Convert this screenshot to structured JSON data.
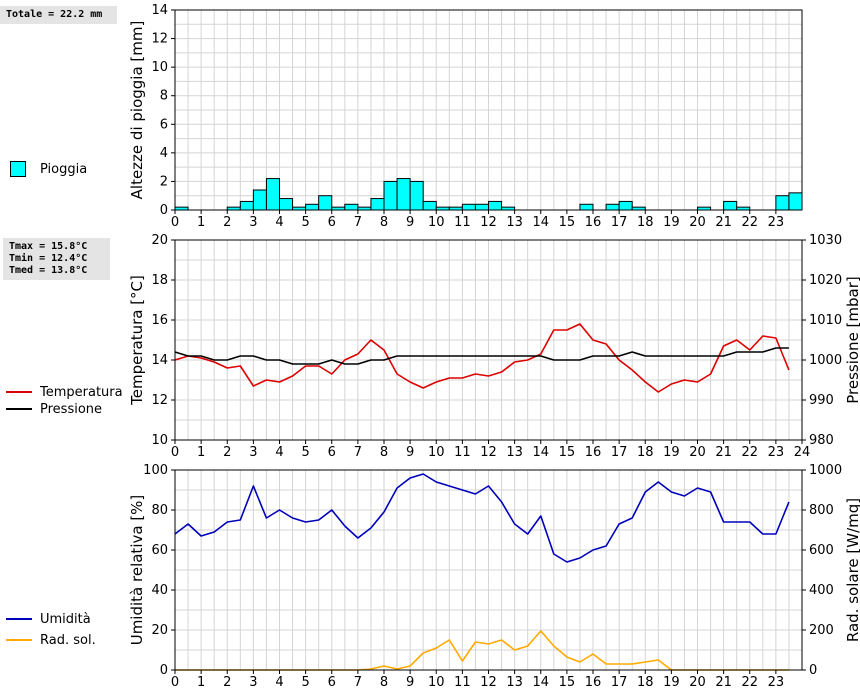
{
  "info": {
    "total": "Totale = 22.2 mm",
    "tmax": "Tmax = 15.8°C",
    "tmin": "Tmin = 12.4°C",
    "tmed": "Tmed = 13.8°C"
  },
  "legends": {
    "rain": "Pioggia",
    "temperature": "Temperatura",
    "pressure": "Pressione",
    "humidity": "Umidità",
    "solar": "Rad. sol."
  },
  "colors": {
    "rain_fill": "#00ffff",
    "temperature": "#dd0000",
    "pressure": "#000000",
    "humidity": "#0000bb",
    "solar": "#ffaa00",
    "grid": "#d4d4d4"
  },
  "chart_data": [
    {
      "type": "bar",
      "ylabel": "Altezze di pioggia [mm]",
      "ylim": [
        0,
        14
      ],
      "yticks": [
        0,
        2,
        4,
        6,
        8,
        10,
        12,
        14
      ],
      "xlim": [
        0,
        24
      ],
      "xticks": [
        0,
        1,
        2,
        3,
        4,
        5,
        6,
        7,
        8,
        9,
        10,
        11,
        12,
        13,
        14,
        15,
        16,
        17,
        18,
        19,
        20,
        21,
        22,
        23
      ],
      "bin_width_hours": 0.5,
      "series": [
        {
          "name": "Pioggia",
          "values": [
            0.2,
            0,
            0,
            0,
            0.2,
            0.6,
            1.4,
            2.2,
            0.8,
            0.2,
            0.4,
            1.0,
            0.2,
            0.4,
            0.2,
            0.8,
            2.0,
            2.2,
            2.0,
            0.6,
            0.2,
            0.2,
            0.4,
            0.4,
            0.6,
            0.2,
            0,
            0,
            0,
            0,
            0,
            0.4,
            0,
            0.4,
            0.6,
            0.2,
            0,
            0,
            0,
            0,
            0.2,
            0,
            0.6,
            0.2,
            0,
            0,
            1.0,
            1.2
          ]
        }
      ]
    },
    {
      "type": "line",
      "ylabel": "Temperatura [°C]",
      "y2label": "Pressione [mbar]",
      "ylim": [
        10,
        20
      ],
      "yticks": [
        10,
        12,
        14,
        16,
        18,
        20
      ],
      "y2lim": [
        980,
        1030
      ],
      "y2ticks": [
        980,
        990,
        1000,
        1010,
        1020,
        1030
      ],
      "xlim": [
        0,
        24
      ],
      "xticks": [
        0,
        1,
        2,
        3,
        4,
        5,
        6,
        7,
        8,
        9,
        10,
        11,
        12,
        13,
        14,
        15,
        16,
        17,
        18,
        19,
        20,
        21,
        22,
        23,
        24
      ],
      "x_step_hours": 0.5,
      "series": [
        {
          "name": "Temperatura",
          "axis": "left",
          "values": [
            14.0,
            14.2,
            14.1,
            13.9,
            13.6,
            13.7,
            12.7,
            13.0,
            12.9,
            13.2,
            13.7,
            13.7,
            13.3,
            14.0,
            14.3,
            15.0,
            14.5,
            13.3,
            12.9,
            12.6,
            12.9,
            13.1,
            13.1,
            13.3,
            13.2,
            13.4,
            13.9,
            14.0,
            14.3,
            15.5,
            15.5,
            15.8,
            15.0,
            14.8,
            14.0,
            13.5,
            12.9,
            12.4,
            12.8,
            13.0,
            12.9,
            13.3,
            14.7,
            15.0,
            14.5,
            15.2,
            15.1,
            13.5
          ]
        },
        {
          "name": "Pressione",
          "axis": "right",
          "values": [
            1002,
            1001,
            1001,
            1000,
            1000,
            1001,
            1001,
            1000,
            1000,
            999,
            999,
            999,
            1000,
            999,
            999,
            1000,
            1000,
            1001,
            1001,
            1001,
            1001,
            1001,
            1001,
            1001,
            1001,
            1001,
            1001,
            1001,
            1001,
            1000,
            1000,
            1000,
            1001,
            1001,
            1001,
            1002,
            1001,
            1001,
            1001,
            1001,
            1001,
            1001,
            1001,
            1002,
            1002,
            1002,
            1003,
            1003
          ]
        }
      ]
    },
    {
      "type": "line",
      "ylabel": "Umidità relativa [%]",
      "y2label": "Rad. solare [W/mq]",
      "ylim": [
        0,
        100
      ],
      "yticks": [
        0,
        20,
        40,
        60,
        80,
        100
      ],
      "y2lim": [
        0,
        1000
      ],
      "y2ticks": [
        0,
        200,
        400,
        600,
        800,
        1000
      ],
      "xlim": [
        0,
        24
      ],
      "xticks": [
        0,
        1,
        2,
        3,
        4,
        5,
        6,
        7,
        8,
        9,
        10,
        11,
        12,
        13,
        14,
        15,
        16,
        17,
        18,
        19,
        20,
        21,
        22,
        23
      ],
      "x_step_hours": 0.5,
      "series": [
        {
          "name": "Umidità",
          "axis": "left",
          "values": [
            68,
            73,
            67,
            69,
            74,
            75,
            92,
            76,
            80,
            76,
            74,
            75,
            80,
            72,
            66,
            71,
            79,
            91,
            96,
            98,
            94,
            92,
            90,
            88,
            92,
            84,
            73,
            68,
            77,
            58,
            54,
            56,
            60,
            62,
            73,
            76,
            89,
            94,
            89,
            87,
            91,
            89,
            74,
            74,
            74,
            68,
            68,
            84
          ]
        },
        {
          "name": "Rad. sol.",
          "axis": "right",
          "values": [
            0,
            0,
            0,
            0,
            0,
            0,
            0,
            0,
            0,
            0,
            0,
            0,
            0,
            0,
            0,
            5,
            20,
            5,
            20,
            85,
            110,
            150,
            45,
            140,
            130,
            150,
            100,
            120,
            195,
            120,
            65,
            40,
            80,
            30,
            30,
            30,
            40,
            50,
            0,
            0,
            0,
            0,
            0,
            0,
            0,
            0,
            0,
            0
          ]
        }
      ]
    }
  ]
}
